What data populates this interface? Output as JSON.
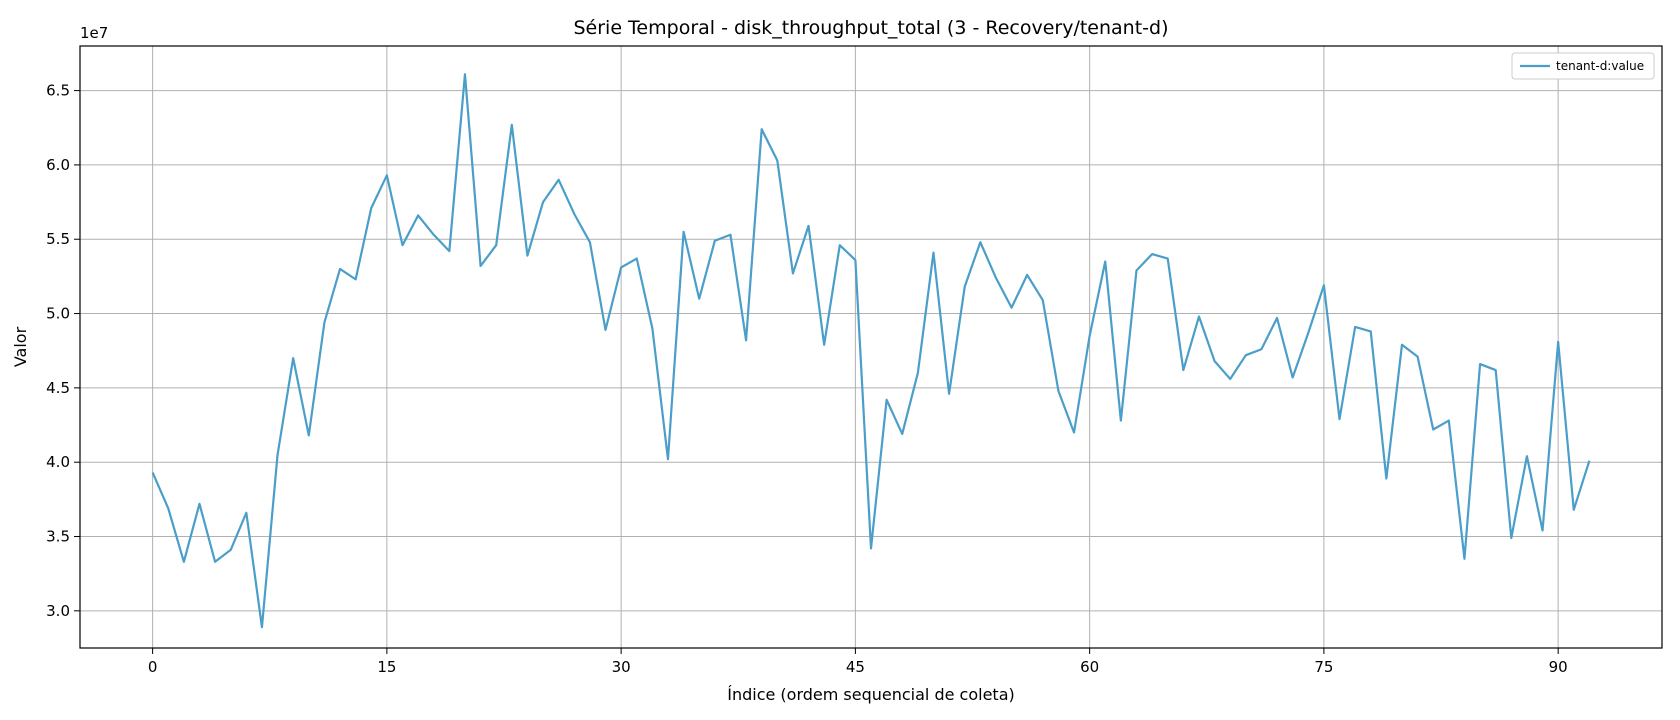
{
  "chart_data": {
    "type": "line",
    "title": "Série Temporal - disk_throughput_total (3 - Recovery/tenant-d)",
    "xlabel": "Índice (ordem sequencial de coleta)",
    "ylabel": "Valor",
    "y_offset_label": "1e7",
    "y_scale": 10000000,
    "xlim": [
      -4.65,
      96.65
    ],
    "ylim": [
      27500000,
      68000000
    ],
    "x_ticks": [
      0,
      15,
      30,
      45,
      60,
      75,
      90
    ],
    "y_ticks": [
      30000000,
      35000000,
      40000000,
      45000000,
      50000000,
      55000000,
      60000000,
      65000000
    ],
    "y_tick_labels": [
      "3.0",
      "3.5",
      "4.0",
      "4.5",
      "5.0",
      "5.5",
      "6.0",
      "6.5"
    ],
    "grid": true,
    "legend_position": "top-right",
    "color": "#4a9ec9",
    "series": [
      {
        "name": "tenant-d:value",
        "x": [
          0,
          1,
          2,
          3,
          4,
          5,
          6,
          7,
          8,
          9,
          10,
          11,
          12,
          13,
          14,
          15,
          16,
          17,
          18,
          19,
          20,
          21,
          22,
          23,
          24,
          25,
          26,
          27,
          28,
          29,
          30,
          31,
          32,
          33,
          34,
          35,
          36,
          37,
          38,
          39,
          40,
          41,
          42,
          43,
          44,
          45,
          46,
          47,
          48,
          49,
          50,
          51,
          52,
          53,
          54,
          55,
          56,
          57,
          58,
          59,
          60,
          61,
          62,
          63,
          64,
          65,
          66,
          67,
          68,
          69,
          70,
          71,
          72,
          73,
          74,
          75,
          76,
          77,
          78,
          79,
          80,
          81,
          82,
          83,
          84,
          85,
          86,
          87,
          88,
          89,
          90,
          91,
          92
        ],
        "values": [
          39300000,
          36900000,
          33300000,
          37200000,
          33300000,
          34100000,
          36600000,
          28900000,
          40500000,
          47000000,
          41800000,
          49400000,
          53000000,
          52300000,
          57100000,
          59300000,
          54600000,
          56600000,
          55300000,
          54200000,
          66100000,
          53200000,
          54600000,
          62700000,
          53900000,
          57500000,
          59000000,
          56700000,
          54800000,
          48900000,
          53100000,
          53700000,
          49000000,
          40200000,
          55500000,
          51000000,
          54900000,
          55300000,
          48200000,
          62400000,
          60300000,
          52700000,
          55900000,
          47900000,
          54600000,
          53600000,
          34200000,
          44200000,
          41900000,
          46000000,
          54100000,
          44600000,
          51800000,
          54800000,
          52400000,
          50400000,
          52600000,
          50900000,
          44800000,
          42000000,
          48500000,
          53500000,
          42800000,
          52900000,
          54000000,
          53700000,
          46200000,
          49800000,
          46800000,
          45600000,
          47200000,
          47600000,
          49700000,
          45700000,
          48700000,
          51900000,
          42900000,
          49100000,
          48800000,
          38900000,
          47900000,
          47100000,
          42200000,
          42800000,
          33500000,
          46600000,
          46200000,
          34900000,
          40400000,
          35400000,
          48100000,
          36800000,
          40100000
        ]
      }
    ]
  }
}
